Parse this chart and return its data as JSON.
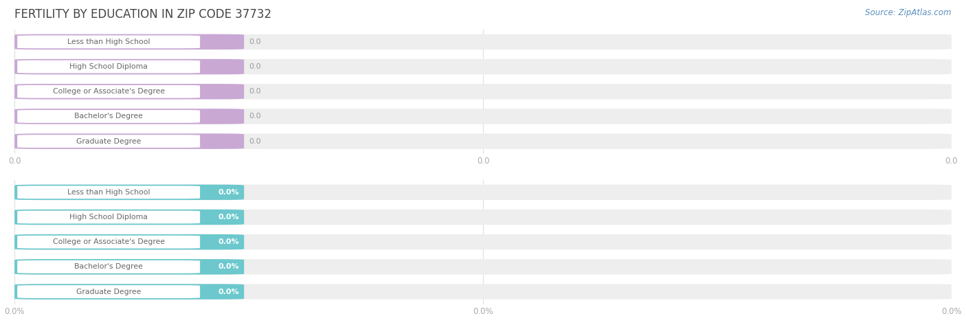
{
  "title": "FERTILITY BY EDUCATION IN ZIP CODE 37732",
  "source": "Source: ZipAtlas.com",
  "categories": [
    "Less than High School",
    "High School Diploma",
    "College or Associate's Degree",
    "Bachelor's Degree",
    "Graduate Degree"
  ],
  "top_values": [
    0.0,
    0.0,
    0.0,
    0.0,
    0.0
  ],
  "bottom_values": [
    0.0,
    0.0,
    0.0,
    0.0,
    0.0
  ],
  "top_bar_color": "#c9a8d4",
  "bottom_bar_color": "#6cc8cc",
  "bg_bar_color": "#eeeeee",
  "title_color": "#444444",
  "source_color": "#5a8fc0",
  "tick_color": "#aaaaaa",
  "label_text_color": "#666666",
  "value_text_color_top": "#999999",
  "value_text_color_bottom": "#ffffff",
  "background_color": "#ffffff",
  "grid_color": "#dddddd"
}
